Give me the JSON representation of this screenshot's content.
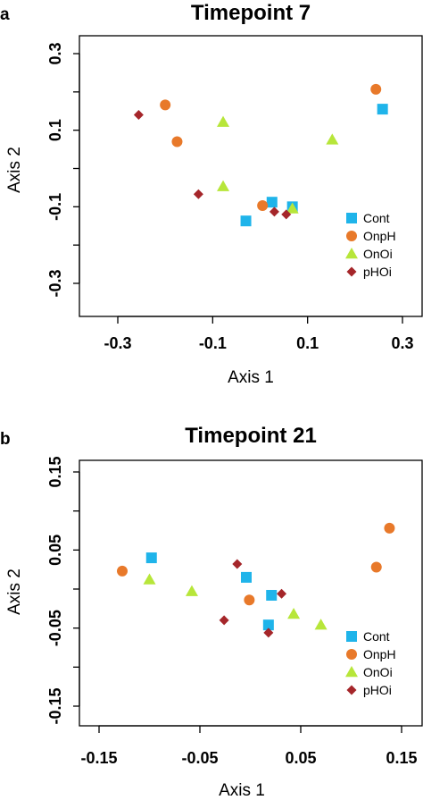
{
  "colors": {
    "Cont": "#1fb4ea",
    "OnpH": "#e8792a",
    "OnOi": "#b7e63a",
    "pHOi": "#a5262a"
  },
  "chart_data": [
    {
      "panel": "a",
      "type": "scatter",
      "title": "Timepoint 7",
      "xlabel": "Axis 1",
      "ylabel": "Axis 2",
      "xlim": [
        -0.3,
        0.3
      ],
      "ylim": [
        -0.3,
        0.3
      ],
      "xticks": [
        -0.3,
        -0.1,
        0.1,
        0.3
      ],
      "xtick_labels": [
        "-0.3",
        "-0.1",
        "0.1",
        "0.3"
      ],
      "yticks": [
        -0.3,
        -0.2,
        -0.1,
        0.0,
        0.1,
        0.2,
        0.3
      ],
      "ytick_labels": [
        "-0.3",
        "",
        "-0.1",
        "",
        "0.1",
        "",
        "0.3"
      ],
      "legend_position": "bottom-right",
      "series": [
        {
          "name": "Cont",
          "marker": "square",
          "points": [
            [
              -0.03,
              -0.137
            ],
            [
              0.025,
              -0.088
            ],
            [
              0.068,
              -0.1
            ],
            [
              0.258,
              0.155
            ]
          ]
        },
        {
          "name": "OnpH",
          "marker": "circle",
          "points": [
            [
              -0.2,
              0.166
            ],
            [
              -0.175,
              0.07
            ],
            [
              0.005,
              -0.097
            ],
            [
              0.244,
              0.207
            ]
          ]
        },
        {
          "name": "OnOi",
          "marker": "triangle",
          "points": [
            [
              -0.078,
              0.121
            ],
            [
              -0.078,
              -0.047
            ],
            [
              0.068,
              -0.105
            ],
            [
              0.152,
              0.075
            ]
          ]
        },
        {
          "name": "pHOi",
          "marker": "diamond",
          "points": [
            [
              -0.256,
              0.14
            ],
            [
              -0.13,
              -0.067
            ],
            [
              0.03,
              -0.113
            ],
            [
              0.055,
              -0.12
            ]
          ]
        }
      ]
    },
    {
      "panel": "b",
      "type": "scatter",
      "title": "Timepoint 21",
      "xlabel": "Axis 1",
      "ylabel": "Axis 2",
      "xlim": [
        -0.15,
        0.15
      ],
      "ylim": [
        -0.15,
        0.15
      ],
      "xticks": [
        -0.15,
        -0.05,
        0.05,
        0.15
      ],
      "xtick_labels": [
        "-0.15",
        "-0.05",
        "0.05",
        "0.15"
      ],
      "yticks": [
        -0.15,
        -0.1,
        -0.05,
        0.0,
        0.05,
        0.1,
        0.15
      ],
      "ytick_labels": [
        "-0.15",
        "",
        "-0.05",
        "",
        "0.05",
        "",
        "0.15"
      ],
      "legend_position": "bottom-right",
      "series": [
        {
          "name": "Cont",
          "marker": "square",
          "points": [
            [
              -0.098,
              0.04
            ],
            [
              -0.004,
              0.015
            ],
            [
              0.021,
              -0.008
            ],
            [
              0.018,
              -0.046
            ]
          ]
        },
        {
          "name": "OnpH",
          "marker": "circle",
          "points": [
            [
              -0.127,
              0.023
            ],
            [
              -0.001,
              -0.014
            ],
            [
              0.125,
              0.028
            ],
            [
              0.138,
              0.078
            ]
          ]
        },
        {
          "name": "OnOi",
          "marker": "triangle",
          "points": [
            [
              -0.1,
              0.012
            ],
            [
              -0.058,
              -0.003
            ],
            [
              0.043,
              -0.032
            ],
            [
              0.07,
              -0.046
            ]
          ]
        },
        {
          "name": "pHOi",
          "marker": "diamond",
          "points": [
            [
              -0.013,
              0.032
            ],
            [
              -0.026,
              -0.04
            ],
            [
              0.018,
              -0.056
            ],
            [
              0.031,
              -0.006
            ]
          ]
        }
      ]
    }
  ]
}
